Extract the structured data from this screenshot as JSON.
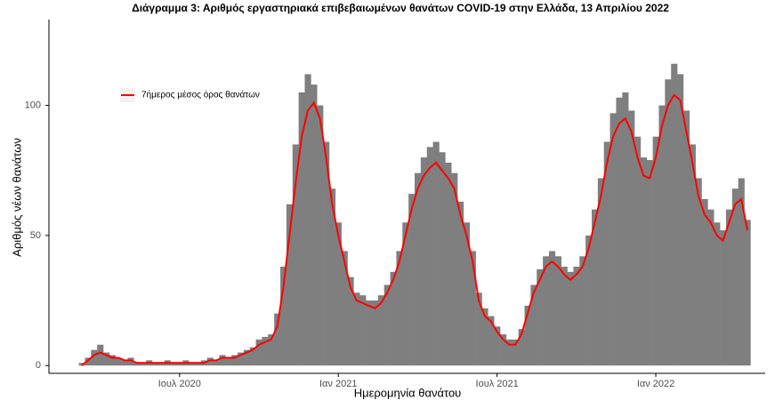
{
  "chart_data": {
    "type": "bar_line",
    "title": "Διάγραμμα 3: Αριθμός εργαστηριακά επιβεβαιωμένων θανάτων COVID-19 στην Ελλάδα, 13 Απριλίου 2022",
    "x_label": "Ημερομηνία θανάτου",
    "y_label": "Αριθμός νέων θανάτων",
    "categories": [
      null,
      null,
      null,
      null,
      null,
      null,
      null,
      null,
      null,
      null,
      null,
      null,
      null,
      null,
      null,
      null,
      "Ιουλ 2020",
      null,
      null,
      null,
      null,
      null,
      null,
      null,
      null,
      null,
      null,
      null,
      null,
      null,
      null,
      null,
      null,
      null,
      null,
      null,
      null,
      null,
      null,
      null,
      null,
      null,
      "Ιαν 2021",
      null,
      null,
      null,
      null,
      null,
      null,
      null,
      null,
      null,
      null,
      null,
      null,
      null,
      null,
      null,
      null,
      null,
      null,
      null,
      null,
      null,
      null,
      null,
      null,
      null,
      "Ιουλ 2021",
      null,
      null,
      null,
      null,
      null,
      null,
      null,
      null,
      null,
      null,
      null,
      null,
      null,
      null,
      null,
      null,
      null,
      null,
      null,
      null,
      null,
      null,
      null,
      null,
      null,
      "Ιαν 2022",
      null,
      null,
      null,
      null,
      null,
      null,
      null,
      null,
      null,
      null,
      null,
      null,
      null,
      null,
      null
    ],
    "series": [
      {
        "color": "#7f7f7f",
        "values": [
          1,
          3,
          6,
          8,
          5,
          4,
          3,
          2,
          3,
          1,
          1,
          2,
          1,
          1,
          2,
          1,
          1,
          2,
          1,
          1,
          2,
          3,
          2,
          4,
          3,
          4,
          5,
          6,
          7,
          10,
          11,
          12,
          20,
          38,
          62,
          85,
          105,
          112,
          108,
          100,
          86,
          68,
          55,
          44,
          34,
          28,
          27,
          25,
          25,
          27,
          31,
          36,
          44,
          55,
          66,
          74,
          80,
          84,
          86,
          82,
          78,
          74,
          63,
          55,
          44,
          28,
          22,
          19,
          15,
          12,
          10,
          10,
          14,
          23,
          31,
          37,
          42,
          44,
          42,
          38,
          36,
          38,
          42,
          50,
          60,
          72,
          86,
          97,
          103,
          105,
          98,
          88,
          80,
          79,
          88,
          100,
          110,
          116,
          112,
          98,
          85,
          72,
          64,
          60,
          55,
          52,
          60,
          68,
          72,
          56
        ]
      },
      {
        "name": "7ήμερος μέσος όρος θανάτων",
        "color": "#ff0000",
        "values": [
          0,
          2,
          4,
          5,
          4,
          3,
          3,
          2,
          2,
          1,
          1,
          1,
          1,
          1,
          1,
          1,
          1,
          1,
          1,
          1,
          1,
          2,
          2,
          3,
          3,
          3,
          4,
          5,
          6,
          8,
          9,
          10,
          15,
          30,
          50,
          70,
          88,
          98,
          101,
          95,
          80,
          62,
          50,
          40,
          30,
          25,
          24,
          23,
          22,
          24,
          28,
          33,
          40,
          50,
          60,
          68,
          73,
          76,
          78,
          75,
          72,
          68,
          58,
          50,
          40,
          25,
          19,
          17,
          13,
          10,
          8,
          8,
          12,
          20,
          28,
          33,
          38,
          40,
          38,
          35,
          33,
          35,
          38,
          45,
          55,
          65,
          78,
          88,
          93,
          95,
          90,
          80,
          73,
          72,
          80,
          92,
          100,
          104,
          102,
          90,
          78,
          65,
          58,
          55,
          50,
          48,
          55,
          62,
          64,
          52
        ]
      }
    ],
    "ylim": [
      -3,
      133
    ],
    "yticks": [
      0,
      50,
      100
    ],
    "legend": "top-left"
  }
}
